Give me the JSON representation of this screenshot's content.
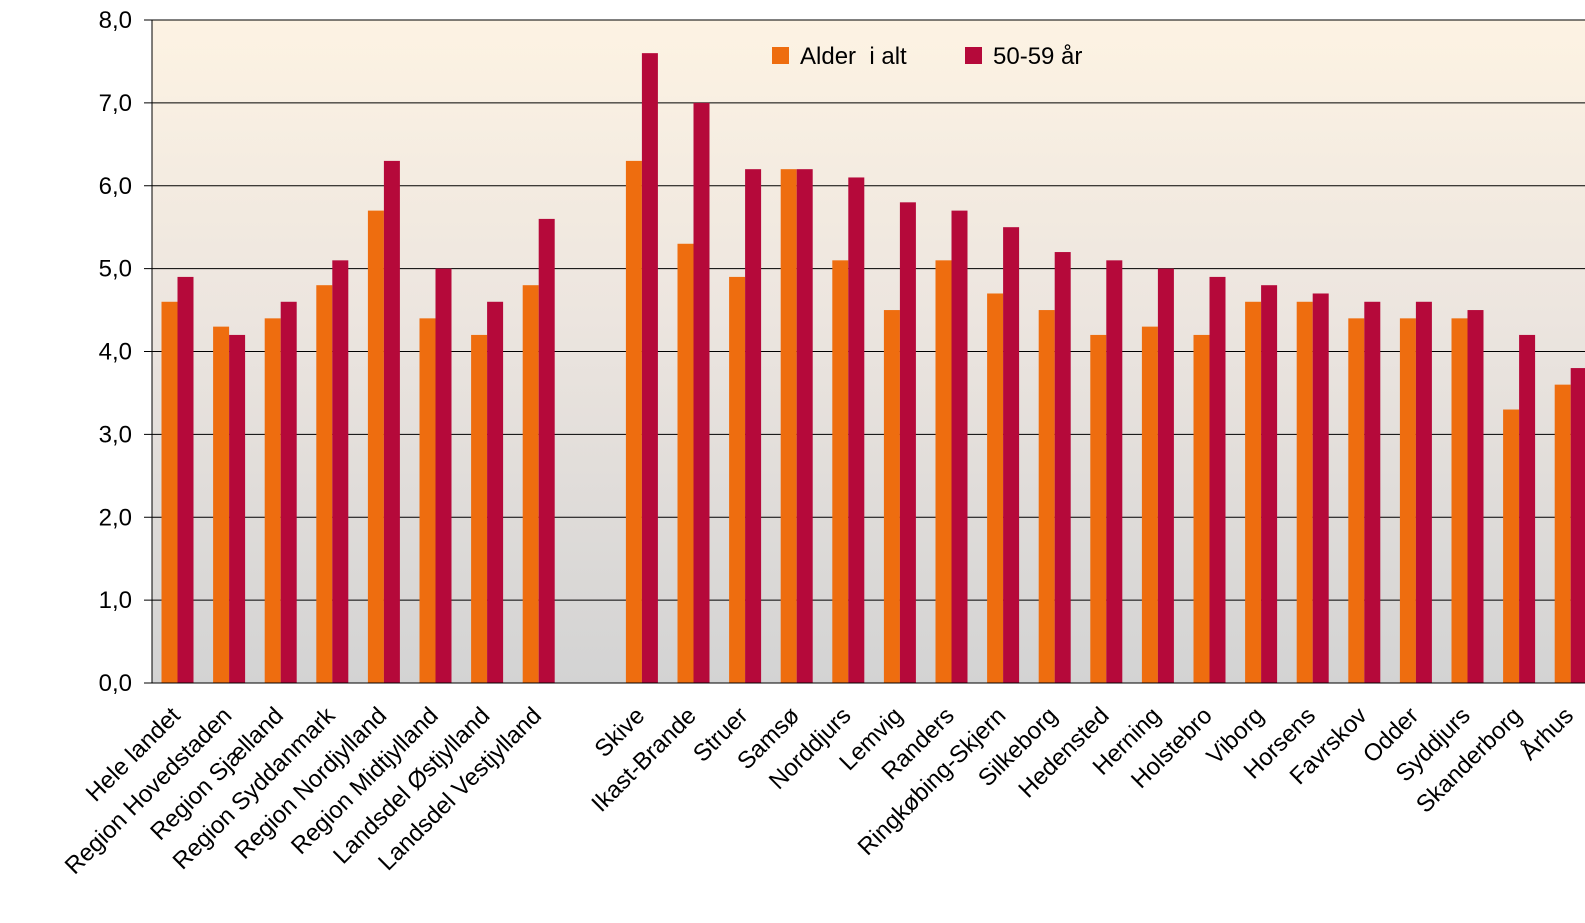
{
  "chart_data": {
    "type": "bar",
    "title": "",
    "xlabel": "",
    "ylabel": "",
    "ylim": [
      0,
      8
    ],
    "yticks": [
      "0,0",
      "1,0",
      "2,0",
      "3,0",
      "4,0",
      "5,0",
      "6,0",
      "7,0",
      "8,0"
    ],
    "grid": true,
    "legend_position": "top-center",
    "categories": [
      "Hele landet",
      "Region Hovedstaden",
      "Region Sjælland",
      "Region Syddanmark",
      "Region Nordjylland",
      "Region Midtjylland",
      "Landsdel Østjylland",
      "Landsdel Vestjylland",
      "",
      "Skive",
      "Ikast-Brande",
      "Struer",
      "Samsø",
      "Norddjurs",
      "Lemvig",
      "Randers",
      "Ringkøbing-Skjern",
      "Silkeborg",
      "Hedensted",
      "Herning",
      "Holstebro",
      "Viborg",
      "Horsens",
      "Favrskov",
      "Odder",
      "Syddjurs",
      "Skanderborg",
      "Århus"
    ],
    "series": [
      {
        "name": "Alder  i alt",
        "color": "#ee6d0f",
        "values": [
          4.6,
          4.3,
          4.4,
          4.8,
          5.7,
          4.4,
          4.2,
          4.8,
          null,
          6.3,
          5.3,
          4.9,
          6.2,
          5.1,
          4.5,
          5.1,
          4.7,
          4.5,
          4.2,
          4.3,
          4.2,
          4.6,
          4.6,
          4.4,
          4.4,
          4.4,
          3.3,
          3.6
        ]
      },
      {
        "name": "50-59 år",
        "color": "#b5093a",
        "values": [
          4.9,
          4.2,
          4.6,
          5.1,
          6.3,
          5.0,
          4.6,
          5.6,
          null,
          7.6,
          7.0,
          6.2,
          6.2,
          6.1,
          5.8,
          5.7,
          5.5,
          5.2,
          5.1,
          5.0,
          4.9,
          4.8,
          4.7,
          4.6,
          4.6,
          4.5,
          4.2,
          3.8
        ]
      }
    ]
  }
}
